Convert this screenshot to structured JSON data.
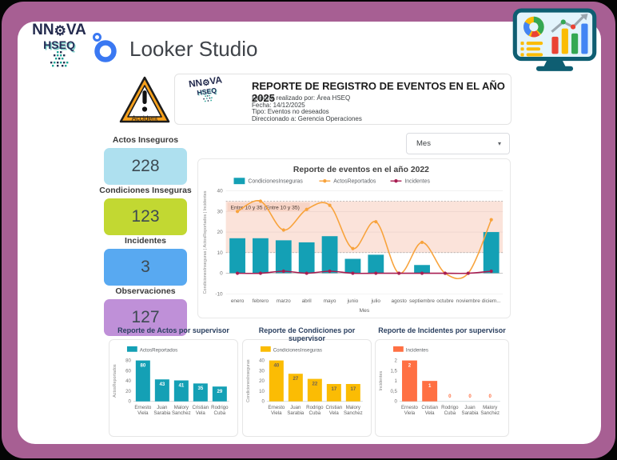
{
  "brand": {
    "name_pre": "NN",
    "name_post": "VA",
    "line2": "HSEQ"
  },
  "app": {
    "title": "Looker Studio"
  },
  "accident": {
    "label": "Accident"
  },
  "report_header": {
    "title": "REPORTE DE REGISTRO DE EVENTOS EN EL AÑO 2025",
    "details": [
      "Reporte realizado por: Área HSEQ",
      "Fecha: 14/12/2025",
      "Tipo: Eventos no deseados",
      "Direccionado a: Gerencia Operaciones"
    ]
  },
  "filter": {
    "value": "Mes"
  },
  "kpis": [
    {
      "label": "Actos Inseguros",
      "value": "228",
      "color": "#aee0ef"
    },
    {
      "label": "Condiciones Inseguras",
      "value": "123",
      "color": "#c2d832"
    },
    {
      "label": "Incidentes",
      "value": "3",
      "color": "#58a9f1"
    },
    {
      "label": "Observaciones",
      "value": "127",
      "color": "#bf90d8"
    }
  ],
  "colors": {
    "frame": "#a75f93",
    "teal": "#14a0b5",
    "orange_line": "#f8a33c",
    "crimson": "#a81e52",
    "yellow": "#fbbc04",
    "coral": "#ff7043"
  },
  "chart_data": [
    {
      "type": "combo",
      "title": "Reporte de eventos en el año 2022",
      "xlabel": "Mes",
      "ylabel": "CondicionesInseguras | ActosReportados | Incidentes",
      "legend_position": "top",
      "grid": true,
      "ylim": [
        -10,
        40
      ],
      "yticks": [
        -10,
        0,
        10,
        20,
        30,
        40
      ],
      "ytick_labels": [
        "-10",
        "0",
        "10",
        "20",
        "30",
        "40"
      ],
      "categories": [
        "enero",
        "febrero",
        "marzo",
        "abril",
        "mayo",
        "junio",
        "julio",
        "agosto",
        "septiembre",
        "octubre",
        "noviembre",
        "diciem..."
      ],
      "series": [
        {
          "name": "CondicionesInseguras",
          "type": "bar",
          "color": "#14a0b5",
          "values": [
            17,
            17,
            16,
            15,
            18,
            7,
            9,
            0,
            4,
            0,
            0,
            20
          ]
        },
        {
          "name": "ActosReportados",
          "type": "line",
          "color": "#f8a33c",
          "values": [
            30,
            35,
            21,
            31,
            33,
            12,
            25,
            0,
            15,
            0,
            0,
            26
          ]
        },
        {
          "name": "Incidentes",
          "type": "line",
          "color": "#a81e52",
          "values": [
            0,
            0,
            1,
            0,
            1,
            0,
            0,
            0,
            0,
            0,
            0,
            1
          ]
        }
      ],
      "band": {
        "from": 10,
        "to": 35,
        "label": "Entre 10 y 35 (Entre 10 y 35)",
        "color": "#fbe3da",
        "chip_color": "#f7d4c6"
      }
    },
    {
      "type": "bar",
      "title": "Reporte de Actos por supervisor",
      "legend": "ActosReportados",
      "ylabel": "ActosReportados",
      "color": "#14a0b5",
      "value_label_color": "#ffffff",
      "categories": [
        "Ernesto Viela",
        "Juan Sarabia",
        "Malory Sanchez",
        "Cristian Vela",
        "Rodrigo Cuba"
      ],
      "values": [
        80,
        43,
        41,
        35,
        29
      ],
      "ylim": [
        0,
        80
      ],
      "yticks": [
        0,
        20,
        40,
        60,
        80
      ],
      "ytick_labels": [
        "0",
        "20",
        "40",
        "60",
        "80"
      ]
    },
    {
      "type": "bar",
      "title": "Reporte de Condiciones por supervisor",
      "legend": "CondicionesInseguras",
      "ylabel": "CondicionesInseguras",
      "color": "#fbbc04",
      "value_label_color": "#6d6255",
      "categories": [
        "Ernesto Viela",
        "Juan Sarabia",
        "Rodrigo Cuba",
        "Cristian Vela",
        "Malory Sanchez"
      ],
      "values": [
        40,
        27,
        22,
        17,
        17
      ],
      "ylim": [
        0,
        40
      ],
      "yticks": [
        0,
        10,
        20,
        30,
        40
      ],
      "ytick_labels": [
        "0",
        "10",
        "20",
        "30",
        "40"
      ]
    },
    {
      "type": "bar",
      "title": "Reporte de Incidentes por supervisor",
      "legend": "Incidentes",
      "ylabel": "Incidentes",
      "color": "#ff7043",
      "value_label_color": "#ffffff",
      "categories": [
        "Ernesto Viela",
        "Cristian Vela",
        "Rodrigo Cuba",
        "Juan Sarabia",
        "Malory Sanchez"
      ],
      "values": [
        2,
        1,
        0,
        0,
        0
      ],
      "ylim": [
        0,
        2
      ],
      "yticks": [
        0,
        0.5,
        1,
        1.5,
        2
      ],
      "ytick_labels": [
        "0",
        "0,5",
        "1",
        "1,5",
        "2"
      ]
    }
  ]
}
